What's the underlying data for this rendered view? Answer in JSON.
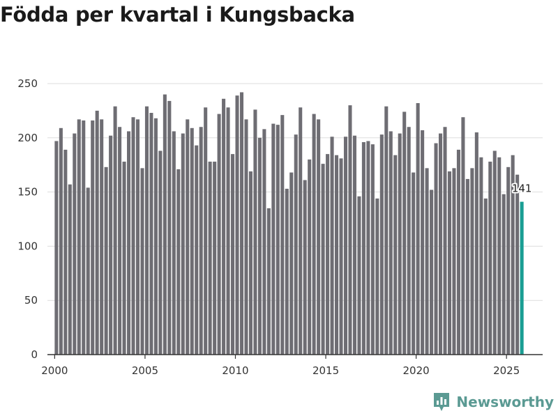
{
  "title": "Födda per kvartal i Kungsbacka",
  "brand": {
    "name": "Newsworthy",
    "icon": "newsworthy-logo-icon"
  },
  "colors": {
    "bar": "#6e6d73",
    "highlight": "#1a9e93",
    "grid": "#dddddd",
    "axis": "#333333",
    "brand": "#5b9a93"
  },
  "chart_data": {
    "type": "bar",
    "title": "Födda per kvartal i Kungsbacka",
    "xlabel": "",
    "ylabel": "",
    "ylim": [
      0,
      250
    ],
    "yticks": [
      0,
      50,
      100,
      150,
      200,
      250
    ],
    "xticks": [
      2000,
      2005,
      2010,
      2015,
      2020,
      2025
    ],
    "xlim": [
      1999.6,
      2027.0
    ],
    "grid": true,
    "start_year": 2000,
    "quarters_per_year": 4,
    "values": [
      197,
      209,
      189,
      157,
      204,
      217,
      216,
      154,
      216,
      225,
      217,
      173,
      202,
      229,
      210,
      178,
      206,
      219,
      217,
      172,
      229,
      223,
      218,
      188,
      240,
      234,
      206,
      171,
      204,
      217,
      209,
      193,
      210,
      228,
      178,
      178,
      222,
      236,
      228,
      185,
      239,
      242,
      217,
      169,
      226,
      200,
      208,
      135,
      213,
      212,
      221,
      153,
      168,
      203,
      228,
      161,
      180,
      222,
      217,
      176,
      185,
      201,
      184,
      181,
      201,
      230,
      202,
      146,
      196,
      197,
      194,
      144,
      203,
      229,
      206,
      184,
      204,
      224,
      210,
      168,
      232,
      207,
      172,
      152,
      195,
      204,
      210,
      169,
      172,
      189,
      219,
      162,
      172,
      205,
      182,
      144,
      178,
      188,
      182,
      148,
      173,
      184,
      166,
      141
    ],
    "highlight_label": "141"
  }
}
